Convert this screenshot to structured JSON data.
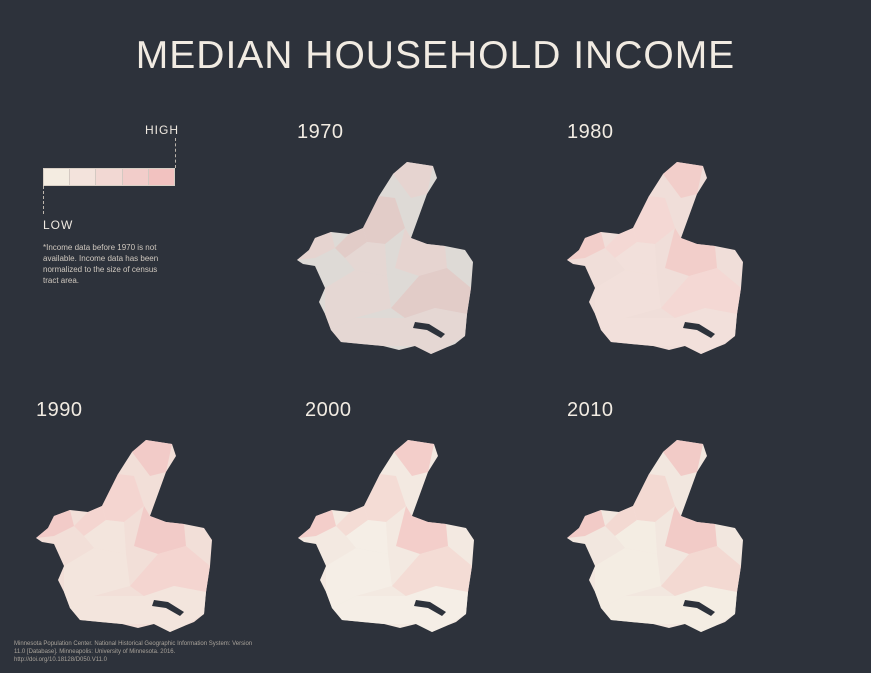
{
  "title": "MEDIAN HOUSEHOLD INCOME",
  "legend": {
    "high_label": "HIGH",
    "low_label": "LOW",
    "colors": [
      "#f4ece1",
      "#f3e3dc",
      "#f2d8d3",
      "#f2cdca",
      "#f2c2c0"
    ]
  },
  "note": "*Income data before 1970 is not available. Income data has been normalized to the size of census tract area.",
  "maps": [
    {
      "year": "1970",
      "base": "#dedad6",
      "accents": [
        "#e8d2cf",
        "#e3c9c6",
        "#e6d6d2"
      ]
    },
    {
      "year": "1980",
      "base": "#f0ded9",
      "accents": [
        "#f2cbc7",
        "#f5d7d2",
        "#f2e1db"
      ]
    },
    {
      "year": "1990",
      "base": "#f2dfd8",
      "accents": [
        "#f2c8c5",
        "#f4d4cf",
        "#f3e6de"
      ]
    },
    {
      "year": "2000",
      "base": "#f3e9e1",
      "accents": [
        "#f2c9c5",
        "#f3d9d2",
        "#f5efe6"
      ]
    },
    {
      "year": "2010",
      "base": "#f2e7df",
      "accents": [
        "#f2c6c3",
        "#f3d6d0",
        "#f5ede4"
      ]
    }
  ],
  "source": "Minnesota Population Center. National Historical Geographic Information System: Version 11.0 [Database]. Minneapolis: University of Minnesota. 2016. http://doi.org/10.18128/D050.V11.0"
}
